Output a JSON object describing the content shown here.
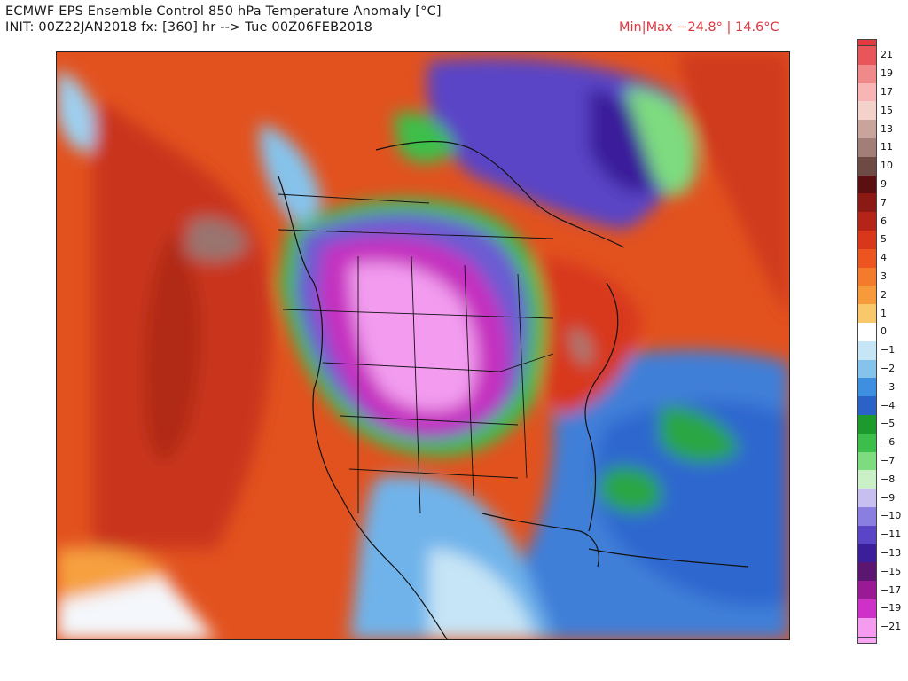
{
  "header": {
    "title_line1": "ECMWF EPS Ensemble Control 850 hPa Temperature Anomaly [°C]",
    "title_line2": "INIT: 00Z22JAN2018 fx: [360] hr --> Tue 00Z06FEB2018",
    "minmax": "Min|Max −24.8° | 14.6°C"
  },
  "legend": {
    "labels": [
      "21",
      "19",
      "17",
      "15",
      "13",
      "11",
      "10",
      "9",
      "7",
      "6",
      "5",
      "4",
      "3",
      "2",
      "1",
      "0",
      "−1",
      "−2",
      "−3",
      "−4",
      "−5",
      "−6",
      "−7",
      "−8",
      "−9",
      "−10",
      "−11",
      "−13",
      "−15",
      "−17",
      "−19",
      "−21"
    ],
    "colors": [
      "#e8565a",
      "#f08a8a",
      "#f7b5b5",
      "#f4d2cc",
      "#c9a49c",
      "#a17f78",
      "#6e4a44",
      "#5a1010",
      "#8c1a14",
      "#b52418",
      "#d8371c",
      "#ec5420",
      "#f47a2c",
      "#f79a3c",
      "#f9c86a",
      "#ffffff",
      "#c7e6f5",
      "#86c3ec",
      "#3f8fe0",
      "#2a62c8",
      "#1d9a2e",
      "#3cbf4a",
      "#7edb7f",
      "#c9f0c6",
      "#c6bff0",
      "#8a7ee0",
      "#5a45c6",
      "#3b1f9a",
      "#5a1670",
      "#9a1a95",
      "#cf30c8",
      "#f59bf0"
    ],
    "arrow_colors": [
      "#e33a3e",
      "#f8a5f4"
    ]
  },
  "map": {
    "region": "North America",
    "field": "850 hPa temperature anomaly"
  }
}
